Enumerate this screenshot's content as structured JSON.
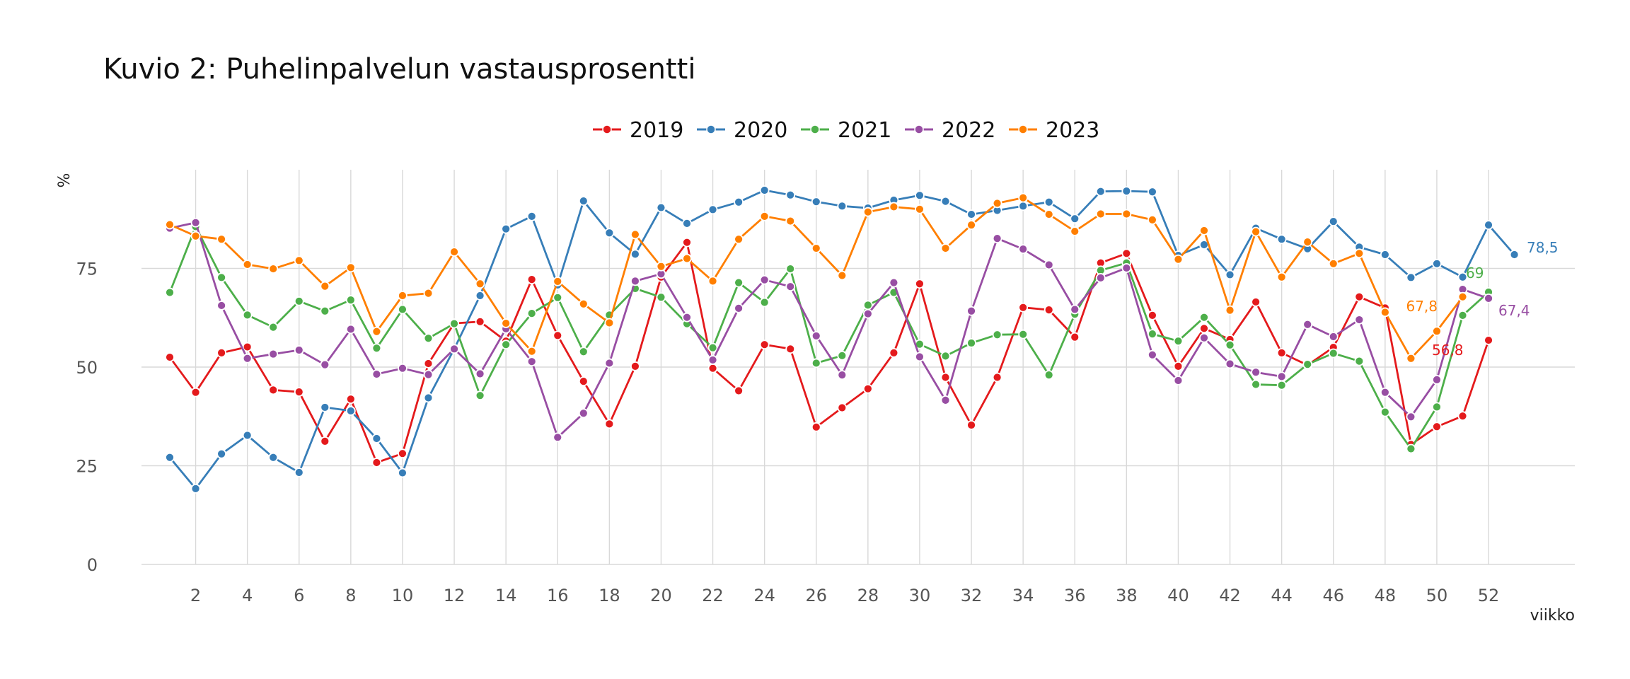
{
  "chart_data": {
    "type": "line",
    "title": "Kuvio 2: Puhelinpalvelun vastausprosentti",
    "xlabel": "viikko",
    "ylabel": "%",
    "xlim": [
      0,
      56
    ],
    "ylim": [
      0,
      100
    ],
    "x_ticks": [
      2,
      4,
      6,
      8,
      10,
      12,
      14,
      16,
      18,
      20,
      22,
      24,
      26,
      28,
      30,
      32,
      34,
      36,
      38,
      40,
      42,
      44,
      46,
      48,
      50,
      52
    ],
    "y_ticks": [
      0,
      25,
      50,
      75
    ],
    "grid": true,
    "legend_position": "top",
    "series": [
      {
        "name": "2019",
        "color": "#e41a1c",
        "end_label": "56,8",
        "x": [
          1,
          2,
          3,
          4,
          5,
          6,
          7,
          8,
          9,
          10,
          11,
          12,
          13,
          14,
          15,
          16,
          17,
          18,
          19,
          20,
          21,
          22,
          23,
          24,
          25,
          26,
          27,
          28,
          29,
          30,
          31,
          32,
          33,
          34,
          35,
          36,
          37,
          38,
          39,
          40,
          41,
          42,
          43,
          44,
          45,
          46,
          47,
          48,
          49,
          50,
          51,
          52
        ],
        "values": [
          52.5,
          43.6,
          53.6,
          55.1,
          44.2,
          43.7,
          31.2,
          41.9,
          25.8,
          28.1,
          50.9,
          61.1,
          61.5,
          56.6,
          72.2,
          58.0,
          46.4,
          35.6,
          50.2,
          72.8,
          81.6,
          49.7,
          44.0,
          55.7,
          54.6,
          34.8,
          39.7,
          44.5,
          53.6,
          71.1,
          47.4,
          35.3,
          47.4,
          65.1,
          64.5,
          57.6,
          76.4,
          78.8,
          63.1,
          50.2,
          59.8,
          57.0,
          66.5,
          53.6,
          50.5,
          55.0,
          67.8,
          65.0,
          30.4,
          34.9,
          37.6,
          56.8
        ]
      },
      {
        "name": "2020",
        "color": "#377eb8",
        "end_label": "78,5",
        "x": [
          1,
          2,
          3,
          4,
          5,
          6,
          7,
          8,
          9,
          10,
          11,
          12,
          13,
          14,
          15,
          16,
          17,
          18,
          19,
          20,
          21,
          22,
          23,
          24,
          25,
          26,
          27,
          28,
          29,
          30,
          31,
          32,
          33,
          34,
          35,
          36,
          37,
          38,
          39,
          40,
          41,
          42,
          43,
          44,
          45,
          46,
          47,
          48,
          49,
          50,
          51,
          52,
          53
        ],
        "values": [
          27.1,
          19.2,
          28.0,
          32.7,
          27.1,
          23.3,
          39.8,
          38.9,
          31.9,
          23.2,
          42.2,
          54.6,
          68.1,
          85.0,
          88.2,
          70.8,
          92.1,
          84.0,
          78.6,
          90.4,
          86.4,
          89.9,
          91.8,
          94.8,
          93.6,
          91.9,
          90.8,
          90.3,
          92.3,
          93.5,
          92.0,
          88.7,
          89.7,
          90.8,
          91.8,
          87.6,
          94.5,
          94.6,
          94.4,
          78.3,
          81.0,
          73.4,
          85.2,
          82.4,
          80.0,
          86.9,
          80.4,
          78.5,
          72.7,
          76.2,
          72.8,
          86.0,
          78.5
        ]
      },
      {
        "name": "2021",
        "color": "#4daf4a",
        "end_label": "69",
        "x": [
          1,
          2,
          3,
          4,
          5,
          6,
          7,
          8,
          9,
          10,
          11,
          12,
          13,
          14,
          15,
          16,
          17,
          18,
          19,
          20,
          21,
          22,
          23,
          24,
          25,
          26,
          27,
          28,
          29,
          30,
          31,
          32,
          33,
          34,
          35,
          36,
          37,
          38,
          39,
          40,
          41,
          42,
          43,
          44,
          45,
          46,
          47,
          48,
          49,
          50,
          51,
          52
        ],
        "values": [
          68.9,
          85.6,
          72.7,
          63.2,
          60.1,
          66.7,
          64.2,
          67.0,
          54.8,
          64.6,
          57.3,
          61.0,
          42.8,
          55.7,
          63.6,
          67.6,
          53.9,
          63.2,
          69.9,
          67.7,
          61.0,
          54.9,
          71.4,
          66.4,
          74.9,
          51.0,
          52.9,
          65.7,
          68.9,
          55.8,
          52.8,
          56.1,
          58.2,
          58.3,
          48.0,
          63.4,
          74.5,
          76.4,
          58.4,
          56.6,
          62.6,
          55.6,
          45.6,
          45.4,
          50.7,
          53.5,
          51.5,
          38.6,
          29.3,
          39.9,
          63.1,
          69.0
        ]
      },
      {
        "name": "2022",
        "color": "#984ea3",
        "end_label": "67,4",
        "x": [
          1,
          2,
          3,
          4,
          5,
          6,
          7,
          8,
          9,
          10,
          11,
          12,
          13,
          14,
          15,
          16,
          17,
          18,
          19,
          20,
          21,
          22,
          23,
          24,
          25,
          26,
          27,
          28,
          29,
          30,
          31,
          32,
          33,
          34,
          35,
          36,
          37,
          38,
          39,
          40,
          41,
          42,
          43,
          44,
          45,
          46,
          47,
          48,
          49,
          50,
          51,
          52
        ],
        "values": [
          85.2,
          86.6,
          65.6,
          52.2,
          53.3,
          54.3,
          50.6,
          59.6,
          48.2,
          49.7,
          48.1,
          54.6,
          48.3,
          59.7,
          51.4,
          32.2,
          38.3,
          51.0,
          71.8,
          73.6,
          62.6,
          51.8,
          64.9,
          72.1,
          70.4,
          57.9,
          48.0,
          63.5,
          71.4,
          52.6,
          41.6,
          64.2,
          82.6,
          79.9,
          75.9,
          64.6,
          72.6,
          75.1,
          53.1,
          46.6,
          57.4,
          50.8,
          48.7,
          47.6,
          60.8,
          57.7,
          62.0,
          43.6,
          37.4,
          46.8,
          69.7,
          67.4
        ]
      },
      {
        "name": "2023",
        "color": "#ff7f00",
        "end_label": "67,8",
        "x": [
          1,
          2,
          3,
          4,
          5,
          6,
          7,
          8,
          9,
          10,
          11,
          12,
          13,
          14,
          15,
          16,
          17,
          18,
          19,
          20,
          21,
          22,
          23,
          24,
          25,
          26,
          27,
          28,
          29,
          30,
          31,
          32,
          33,
          34,
          35,
          36,
          37,
          38,
          39,
          40,
          41,
          42,
          43,
          44,
          45,
          46,
          47,
          48,
          49,
          50,
          51
        ],
        "values": [
          86.1,
          83.2,
          82.4,
          76.0,
          74.9,
          77.0,
          70.5,
          75.2,
          59.0,
          68.1,
          68.7,
          79.2,
          71.1,
          61.1,
          54.0,
          71.7,
          66.0,
          61.2,
          83.6,
          75.5,
          77.5,
          71.8,
          82.4,
          88.2,
          87.0,
          80.1,
          73.2,
          89.3,
          90.6,
          90.0,
          80.1,
          86.0,
          91.5,
          92.9,
          88.7,
          84.4,
          88.8,
          88.8,
          87.3,
          77.3,
          84.6,
          64.4,
          84.3,
          72.8,
          81.7,
          76.2,
          78.8,
          63.9,
          52.2,
          59.1,
          67.8
        ]
      }
    ]
  }
}
